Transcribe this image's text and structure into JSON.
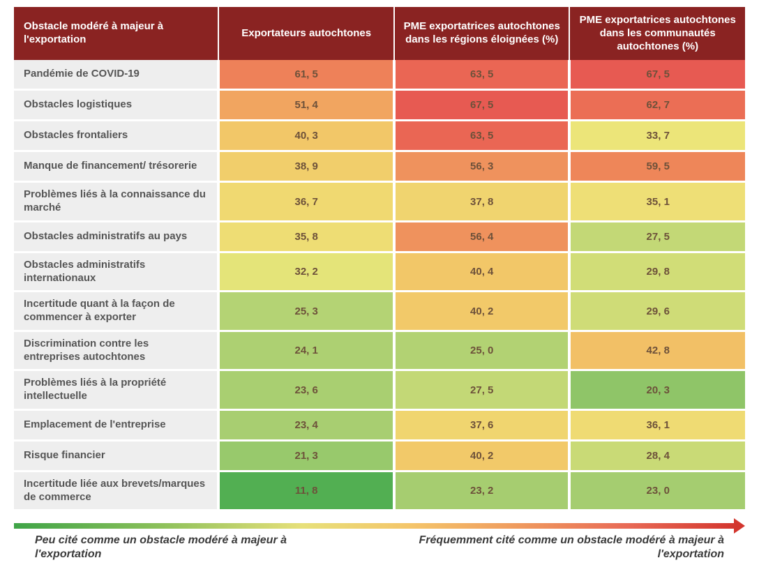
{
  "table": {
    "type": "heatmap-table",
    "header_bg": "#8a2322",
    "header_fg": "#ffffff",
    "row_label_bg": "#eeeeee",
    "row_label_fg": "#555555",
    "cell_text_color": "#6d513a",
    "columns": [
      "Obstacle modéré à majeur à l'exportation",
      "Exportateurs autochtones",
      "PME exportatrices autochtones dans les régions éloignées (%)",
      "PME exportatrices autochtones dans les communautés autochtones (%)"
    ],
    "column_widths_pct": [
      28,
      24,
      24,
      24
    ],
    "rows": [
      {
        "label": "Pandémie de COVID-19",
        "cells": [
          {
            "v": "61, 5",
            "bg": "#ee8159"
          },
          {
            "v": "63, 5",
            "bg": "#ea6654"
          },
          {
            "v": "67, 5",
            "bg": "#e75a52"
          }
        ]
      },
      {
        "label": "Obstacles logistiques",
        "cells": [
          {
            "v": "51, 4",
            "bg": "#f1a560"
          },
          {
            "v": "67, 5",
            "bg": "#e75a52"
          },
          {
            "v": "62, 7",
            "bg": "#eb6e55"
          }
        ]
      },
      {
        "label": "Obstacles frontaliers",
        "cells": [
          {
            "v": "40, 3",
            "bg": "#f2c768"
          },
          {
            "v": "63, 5",
            "bg": "#ea6654"
          },
          {
            "v": "33, 7",
            "bg": "#ece579"
          }
        ]
      },
      {
        "label": "Manque de financement/ trésorerie",
        "cells": [
          {
            "v": "38, 9",
            "bg": "#f1ce6b"
          },
          {
            "v": "56, 3",
            "bg": "#ef925d"
          },
          {
            "v": "59, 5",
            "bg": "#ee8659"
          }
        ]
      },
      {
        "label": "Problèmes liés à la connaissance du marché",
        "cells": [
          {
            "v": "36, 7",
            "bg": "#f0d971"
          },
          {
            "v": "37, 8",
            "bg": "#f0d46f"
          },
          {
            "v": "35, 1",
            "bg": "#eedf76"
          }
        ]
      },
      {
        "label": "Obstacles administratifs au pays",
        "cells": [
          {
            "v": "35, 8",
            "bg": "#eedd74"
          },
          {
            "v": "56, 4",
            "bg": "#ef925d"
          },
          {
            "v": "27, 5",
            "bg": "#c3d876"
          }
        ]
      },
      {
        "label": "Obstacles administratifs internationaux",
        "cells": [
          {
            "v": "32, 2",
            "bg": "#e4e479"
          },
          {
            "v": "40, 4",
            "bg": "#f2c768"
          },
          {
            "v": "29, 8",
            "bg": "#d1dd77"
          }
        ]
      },
      {
        "label": "Incertitude quant à la façon de commencer à exporter",
        "cells": [
          {
            "v": "25, 3",
            "bg": "#b4d374"
          },
          {
            "v": "40, 2",
            "bg": "#f2c969"
          },
          {
            "v": "29, 6",
            "bg": "#cfdc77"
          }
        ]
      },
      {
        "label": "Discrimination contre les entreprises autochtones",
        "cells": [
          {
            "v": "24, 1",
            "bg": "#add072"
          },
          {
            "v": "25, 0",
            "bg": "#b2d273"
          },
          {
            "v": "42, 8",
            "bg": "#f2c066"
          }
        ]
      },
      {
        "label": "Problèmes liés à la propriété intellectuelle",
        "cells": [
          {
            "v": "23, 6",
            "bg": "#a9cf71"
          },
          {
            "v": "27, 5",
            "bg": "#c3d876"
          },
          {
            "v": "20, 3",
            "bg": "#8fc568"
          }
        ]
      },
      {
        "label": "Emplacement de l'entreprise",
        "cells": [
          {
            "v": "23, 4",
            "bg": "#a8ce71"
          },
          {
            "v": "37, 6",
            "bg": "#f0d56f"
          },
          {
            "v": "36, 1",
            "bg": "#efdb73"
          }
        ]
      },
      {
        "label": "Risque financier",
        "cells": [
          {
            "v": "21, 3",
            "bg": "#98c96c"
          },
          {
            "v": "40, 2",
            "bg": "#f2c969"
          },
          {
            "v": "28, 4",
            "bg": "#c9da76"
          }
        ]
      },
      {
        "label": "Incertitude liée aux brevets/marques de commerce",
        "cells": [
          {
            "v": "11, 8",
            "bg": "#52af52"
          },
          {
            "v": "23, 2",
            "bg": "#a6cd70"
          },
          {
            "v": "23, 0",
            "bg": "#a5cd70"
          }
        ]
      }
    ]
  },
  "legend": {
    "gradient_stops": [
      "#3fa447",
      "#8bc05a",
      "#e7e07a",
      "#f4c56a",
      "#ef9a5e",
      "#e86a56",
      "#d3362e"
    ],
    "left_text": "Peu cité comme un obstacle modéré à majeur à l'exportation",
    "right_text": "Fréquemment cité comme un obstacle modéré à majeur à l'exportation",
    "label_fontsize": 16,
    "label_color": "#3a3a3a",
    "arrow_color": "#d3362e"
  }
}
